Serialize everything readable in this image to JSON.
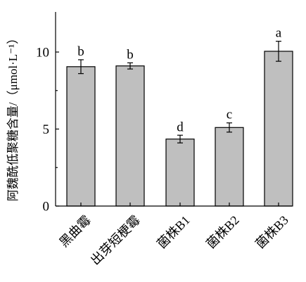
{
  "chart_data": {
    "type": "bar",
    "categories": [
      "黑曲霉",
      "出芽短梗霉",
      "菌株B1",
      "菌株B2",
      "菌株B3"
    ],
    "values": [
      9.05,
      9.1,
      4.35,
      5.1,
      10.05
    ],
    "errors": [
      0.45,
      0.2,
      0.25,
      0.3,
      0.65
    ],
    "significance": [
      "b",
      "b",
      "d",
      "c",
      "a"
    ],
    "ylabel": "阿魏酰低聚糖含量/（μmol·L⁻¹）",
    "xlabel": "",
    "ylim": [
      0,
      12.5
    ],
    "yticks": [
      0,
      5,
      10
    ],
    "colors": {
      "bar": "#bfbfbf",
      "axis": "#000000"
    },
    "grid": false
  }
}
